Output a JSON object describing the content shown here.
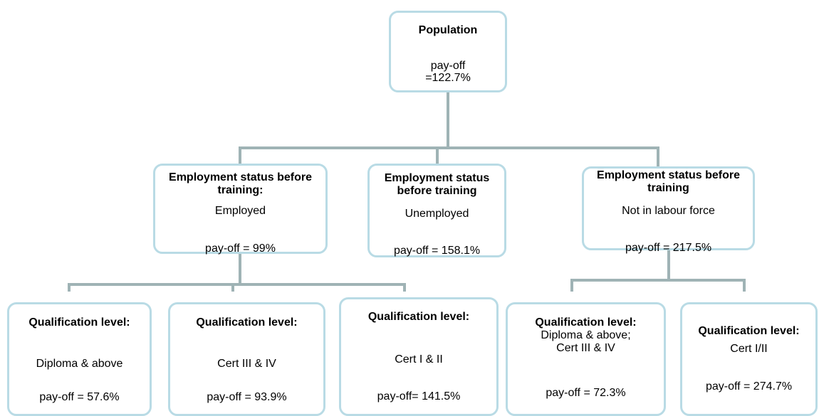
{
  "nodes": [
    {
      "title": "Population",
      "detail": [
        "pay-off",
        "=122.7%"
      ]
    },
    {
      "title": "Employment status before training:",
      "detail": [
        "Employed"
      ],
      "payoff": "pay-off = 99%"
    },
    {
      "title": "Employment status before training",
      "detail": [
        "Unemployed"
      ],
      "payoff": "pay-off = 158.1%"
    },
    {
      "title": "Employment status before training",
      "detail": [
        "Not in labour force"
      ],
      "payoff": "pay-off = 217.5%"
    },
    {
      "title": "Qualification level:",
      "detail": [
        "Diploma & above"
      ],
      "payoff": "pay-off = 57.6%"
    },
    {
      "title": "Qualification level:",
      "detail": [
        "Cert III & IV"
      ],
      "payoff": "pay-off = 93.9%"
    },
    {
      "title": "Qualification level:",
      "detail": [
        "Cert I & II"
      ],
      "payoff": "pay-off= 141.5%"
    },
    {
      "title": "Qualification level:",
      "detail": [
        "Diploma & above;",
        "Cert III & IV"
      ],
      "payoff": "pay-off = 72.3%"
    },
    {
      "title": "Qualification level:",
      "detail": [
        "Cert I/II"
      ],
      "payoff": "pay-off = 274.7%"
    }
  ]
}
